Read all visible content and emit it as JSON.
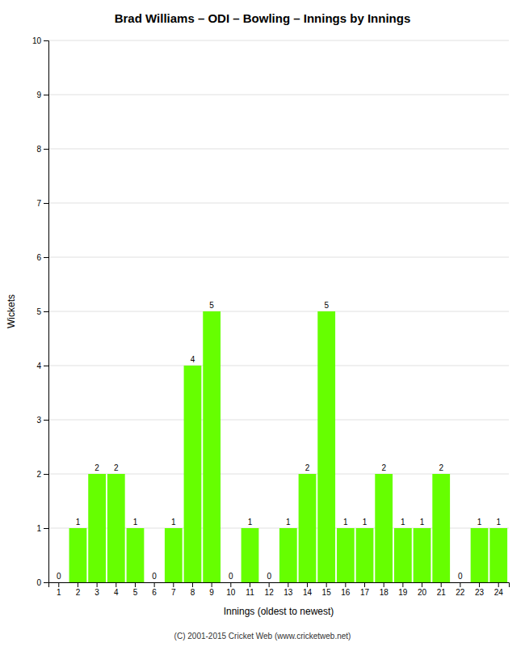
{
  "chart_data": {
    "type": "bar",
    "title": "Brad Williams – ODI – Bowling – Innings by Innings",
    "xlabel": "Innings (oldest to newest)",
    "ylabel": "Wickets",
    "categories": [
      "1",
      "2",
      "3",
      "4",
      "5",
      "6",
      "7",
      "8",
      "9",
      "10",
      "11",
      "12",
      "13",
      "14",
      "15",
      "16",
      "17",
      "18",
      "19",
      "20",
      "21",
      "22",
      "23",
      "24"
    ],
    "values": [
      0,
      1,
      2,
      2,
      1,
      0,
      1,
      4,
      5,
      0,
      1,
      0,
      1,
      2,
      5,
      1,
      1,
      2,
      1,
      1,
      2,
      0,
      1,
      1
    ],
    "color": "#66ff00",
    "ylim": [
      0,
      10
    ],
    "yticks": [
      0,
      1,
      2,
      3,
      4,
      5,
      6,
      7,
      8,
      9,
      10
    ],
    "grid": true,
    "data_labels": true,
    "footer": "(C) 2001-2015 Cricket Web (www.cricketweb.net)"
  }
}
